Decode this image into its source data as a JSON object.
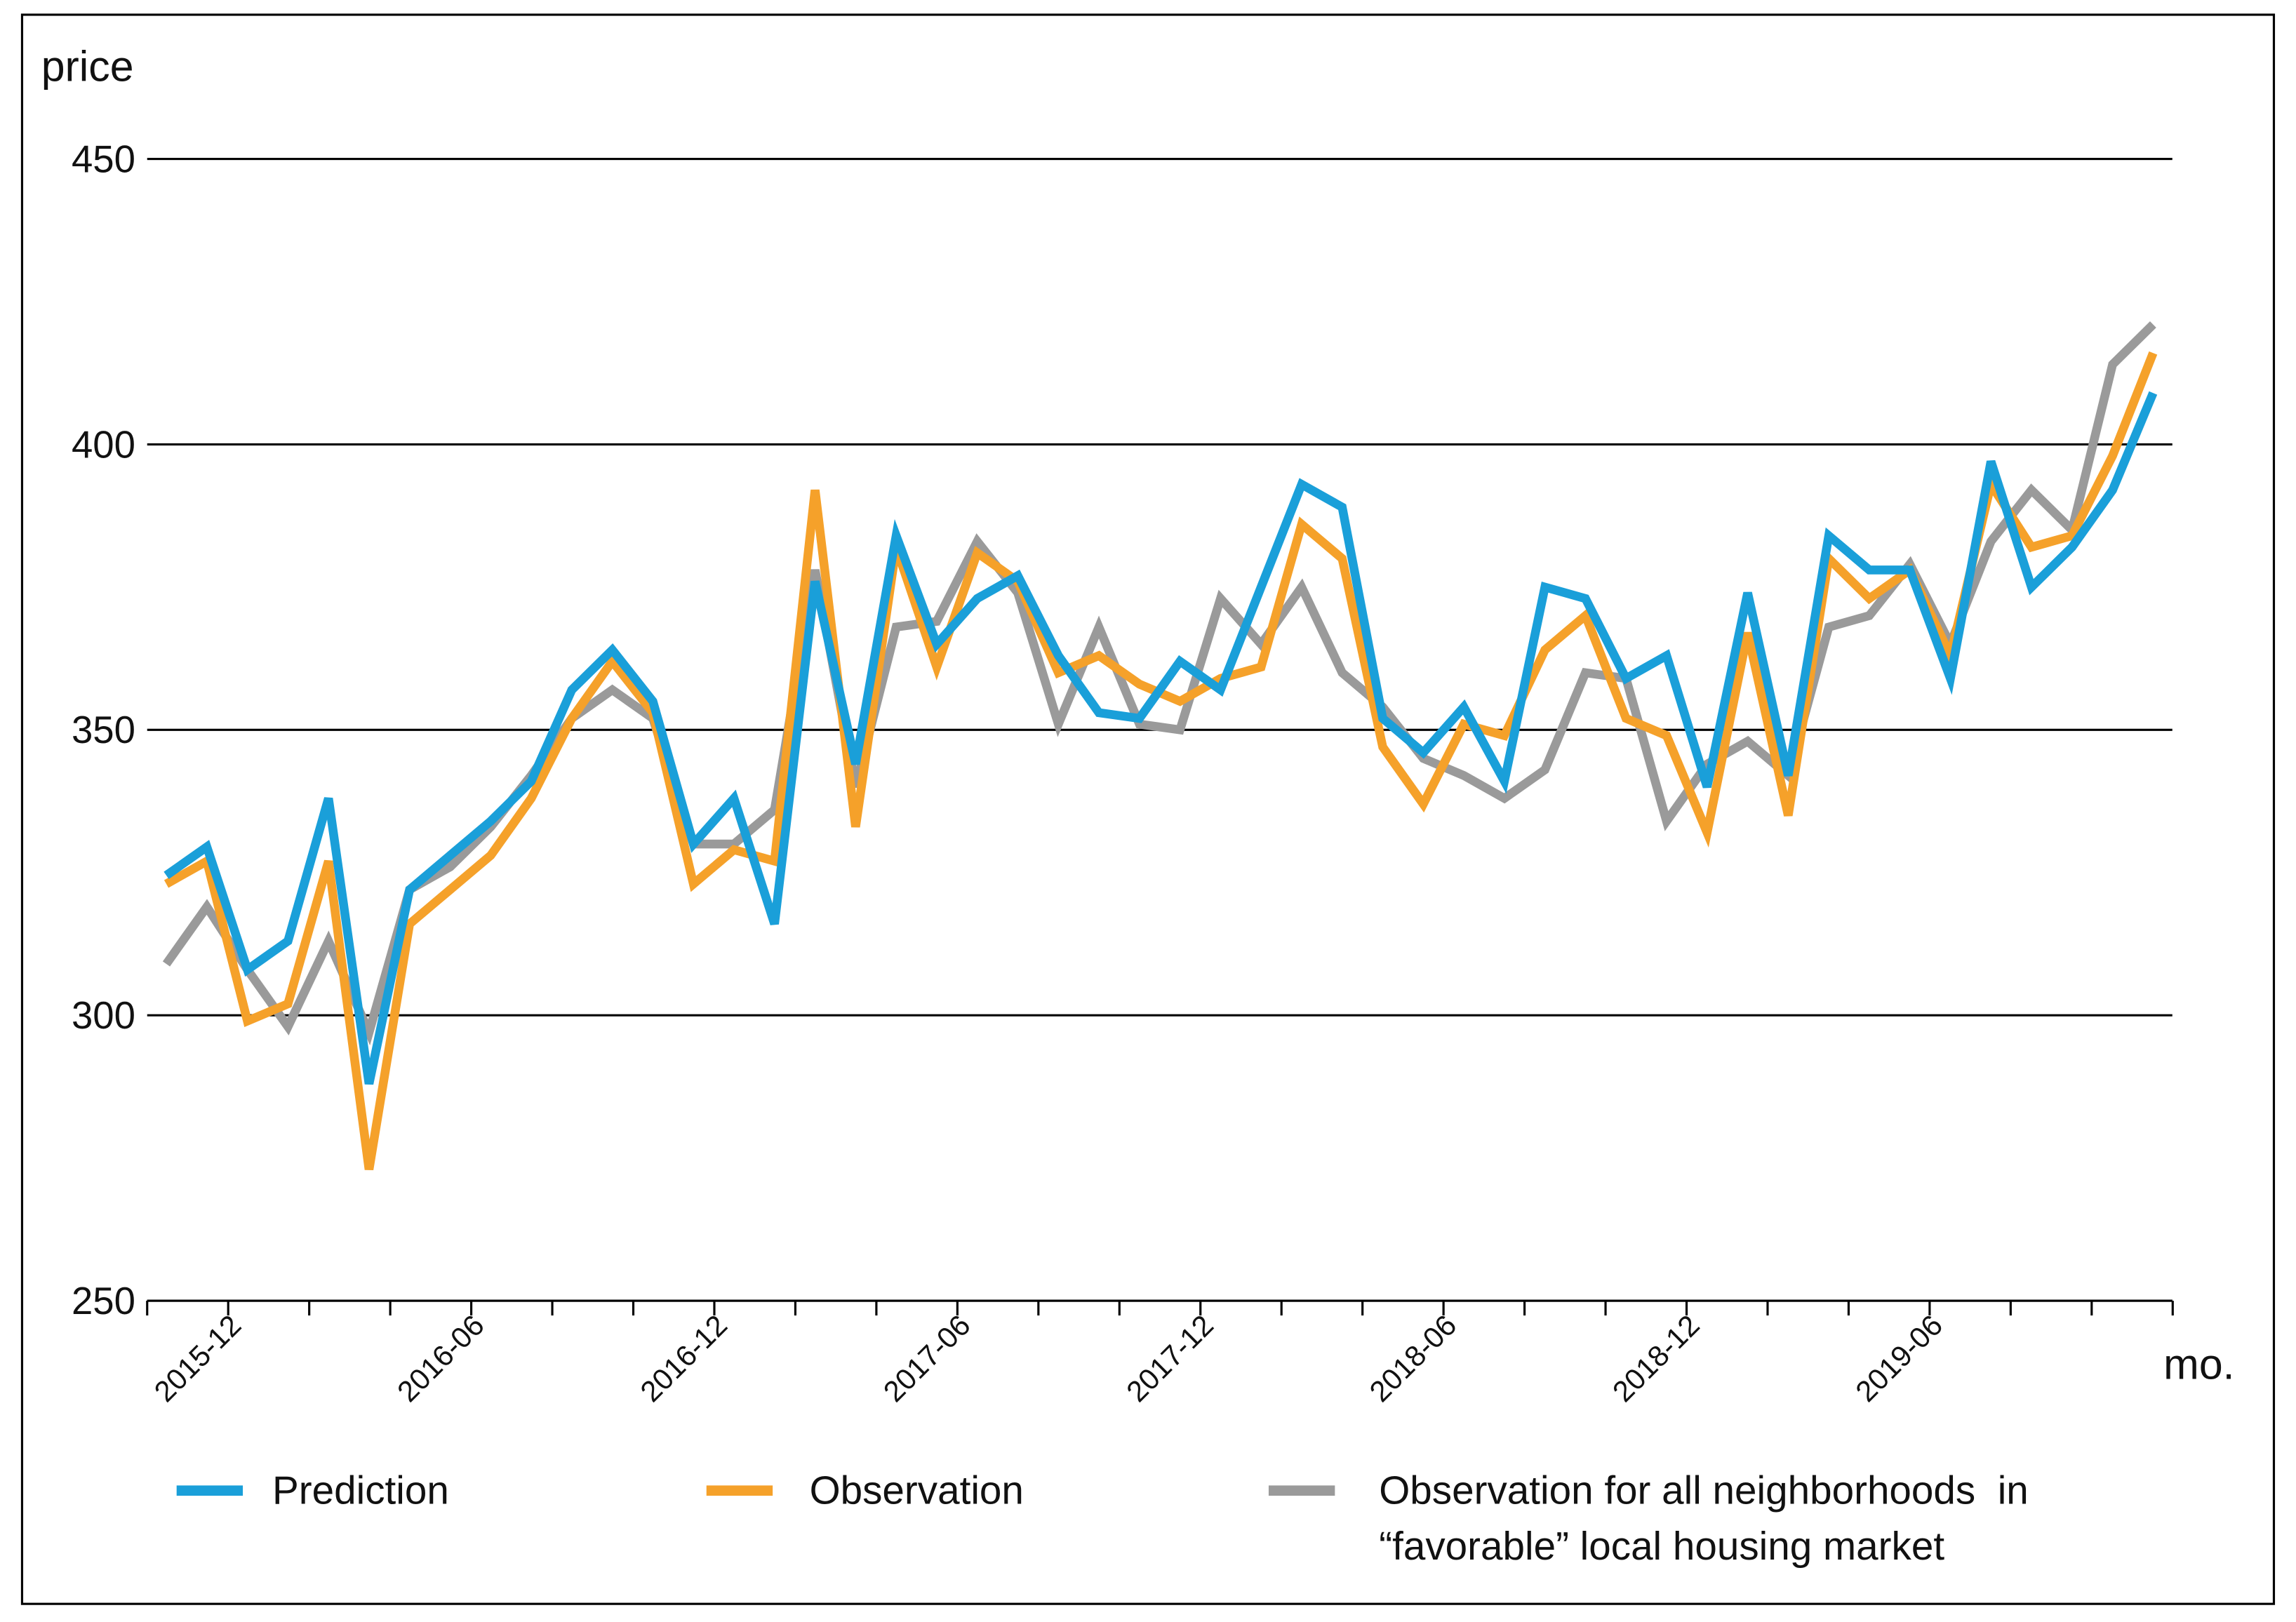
{
  "chart_data": {
    "type": "line",
    "y_label": "price",
    "x_label": "mo.",
    "categories": [
      null,
      "2015-12",
      null,
      null,
      null,
      null,
      null,
      "2016-06",
      null,
      null,
      null,
      null,
      null,
      "2016-12",
      null,
      null,
      null,
      null,
      null,
      "2017-06",
      null,
      null,
      null,
      null,
      null,
      "2017-12",
      null,
      null,
      null,
      null,
      null,
      "2018-06",
      null,
      null,
      null,
      null,
      null,
      "2018-12",
      null,
      null,
      null,
      null,
      null,
      "2019-06",
      null,
      null,
      null,
      null,
      null,
      null
    ],
    "ylim": [
      250,
      450
    ],
    "yticks": [
      250,
      300,
      350,
      400,
      450
    ],
    "grid": true,
    "series": [
      {
        "name": "Prediction",
        "color": "#1a9fd9",
        "values": [
          324.5,
          329.5,
          308,
          313,
          338,
          288,
          322,
          328,
          334,
          341,
          357,
          364,
          355,
          330,
          338,
          316,
          376,
          344,
          384,
          365,
          373,
          377,
          363,
          353,
          352,
          362,
          357,
          375,
          393,
          389,
          352,
          346,
          354,
          341,
          375,
          373,
          359,
          363,
          340,
          374,
          342,
          384,
          378,
          378,
          359,
          397,
          375,
          382,
          392,
          409
        ]
      },
      {
        "name": "Observation",
        "color": "#f5a12a",
        "values": [
          323,
          327,
          299,
          302,
          327,
          273,
          316,
          322,
          328,
          338,
          352,
          362,
          353,
          323,
          329,
          327,
          392,
          333,
          382,
          361,
          381,
          376,
          360,
          363,
          358,
          355,
          359,
          361,
          386,
          380,
          347,
          337,
          351,
          349,
          364,
          370,
          352,
          349,
          332,
          367,
          335,
          380,
          373,
          378,
          363,
          393,
          382,
          384,
          398,
          416
        ]
      },
      {
        "name": "Observation for all neighborhoods  in “favorable” local housing market",
        "color": "#9a9a9a",
        "values": [
          309,
          319,
          308,
          298,
          313,
          297,
          322,
          326,
          333,
          342,
          352,
          357,
          352,
          330,
          330,
          336,
          378,
          340,
          368,
          369,
          383,
          374,
          351,
          368,
          351,
          350,
          373,
          365,
          375,
          360,
          354,
          345,
          342,
          338,
          343,
          360,
          359,
          334,
          344,
          348,
          342,
          368,
          370,
          379,
          365,
          383,
          392,
          385,
          414,
          421
        ]
      }
    ]
  }
}
